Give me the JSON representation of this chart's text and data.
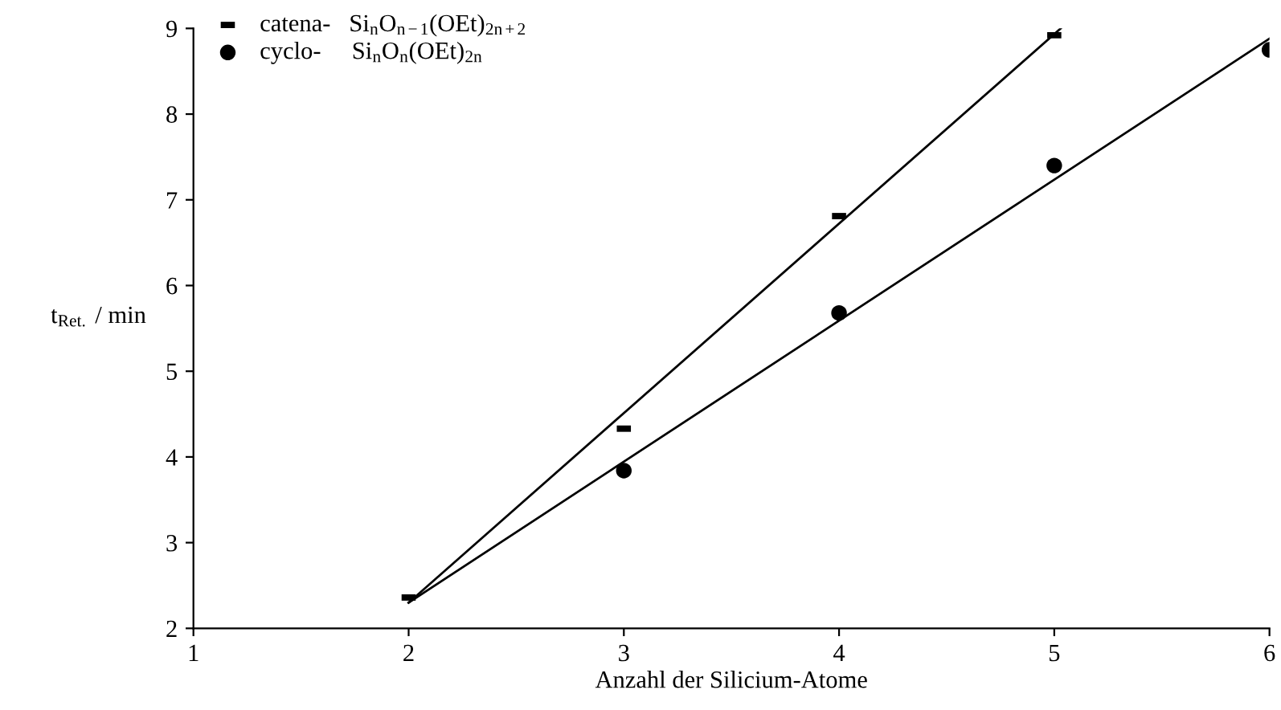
{
  "chart_data": {
    "type": "scatter",
    "xlabel": "Anzahl der Silicium-Atome",
    "ylabel": "t$_{Ret.}$ / min",
    "xlim": [
      1,
      6
    ],
    "xticks": [
      1,
      2,
      3,
      4,
      5,
      6
    ],
    "ylim": [
      2,
      9
    ],
    "yticks": [
      2,
      3,
      4,
      5,
      6,
      7,
      8,
      9
    ],
    "grid": false,
    "legend": "top left",
    "series": [
      {
        "name": "catena-   Si$_{n}$O$_{n−1}$(OEt)$_{2n+2}$",
        "marker": "square",
        "color": "#000000",
        "x": [
          2,
          3,
          4,
          5
        ],
        "values": [
          2.36,
          4.33,
          6.81,
          8.92
        ]
      },
      {
        "name": "cyclo-     Si$_{n}$O$_{n}$(OEt)$_{2n}$",
        "marker": "circle",
        "color": "#000000",
        "x": [
          3,
          4,
          5,
          6
        ],
        "values": [
          3.84,
          5.68,
          7.4,
          8.75
        ]
      },
      {
        "type": "line",
        "marker": "none",
        "line_style": "solid",
        "color": "#000000",
        "x": [
          2,
          5.03
        ],
        "values": [
          2.3,
          9.0
        ]
      },
      {
        "type": "line",
        "marker": "none",
        "line_style": "solid",
        "color": "#000000",
        "x": [
          2,
          6
        ],
        "values": [
          2.3,
          8.88
        ]
      }
    ]
  }
}
